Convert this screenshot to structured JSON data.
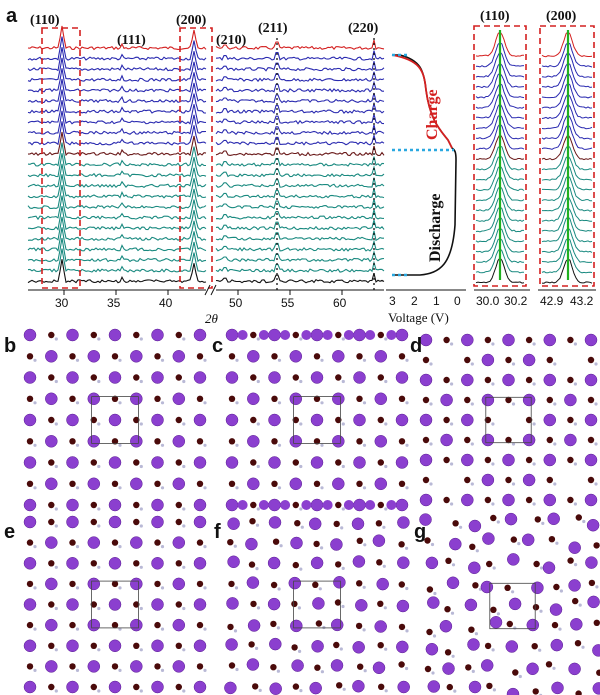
{
  "panel_a": {
    "label": "a",
    "peaks": [
      "(110)",
      "(111)",
      "(200)",
      "(210)",
      "(211)",
      "(220)"
    ],
    "xticks_left": [
      "30",
      "35",
      "40"
    ],
    "xticks_right": [
      "50",
      "55",
      "60"
    ],
    "xlabel": "2θ",
    "voltage_ticks": [
      "3",
      "2",
      "1",
      "0"
    ],
    "voltage_label": "Voltage (V)",
    "charge_label": "Charge",
    "discharge_label": "Discharge",
    "zoom1_title": "(110)",
    "zoom1_ticks": [
      "30.0",
      "30.2"
    ],
    "zoom2_title": "(200)",
    "zoom2_ticks": [
      "42.9",
      "43.2"
    ],
    "colors": {
      "charge": "#d42020",
      "blue": "#2a2ab0",
      "transition": "#6a1a1a",
      "discharge": "#1a8a80",
      "final": "#111111",
      "marker": "#2aa8e0",
      "guide": "#1fb020",
      "box": "#d42020"
    }
  },
  "structures": [
    {
      "label": "b"
    },
    {
      "label": "c"
    },
    {
      "label": "d"
    },
    {
      "label": "e"
    },
    {
      "label": "f"
    },
    {
      "label": "g"
    }
  ]
}
